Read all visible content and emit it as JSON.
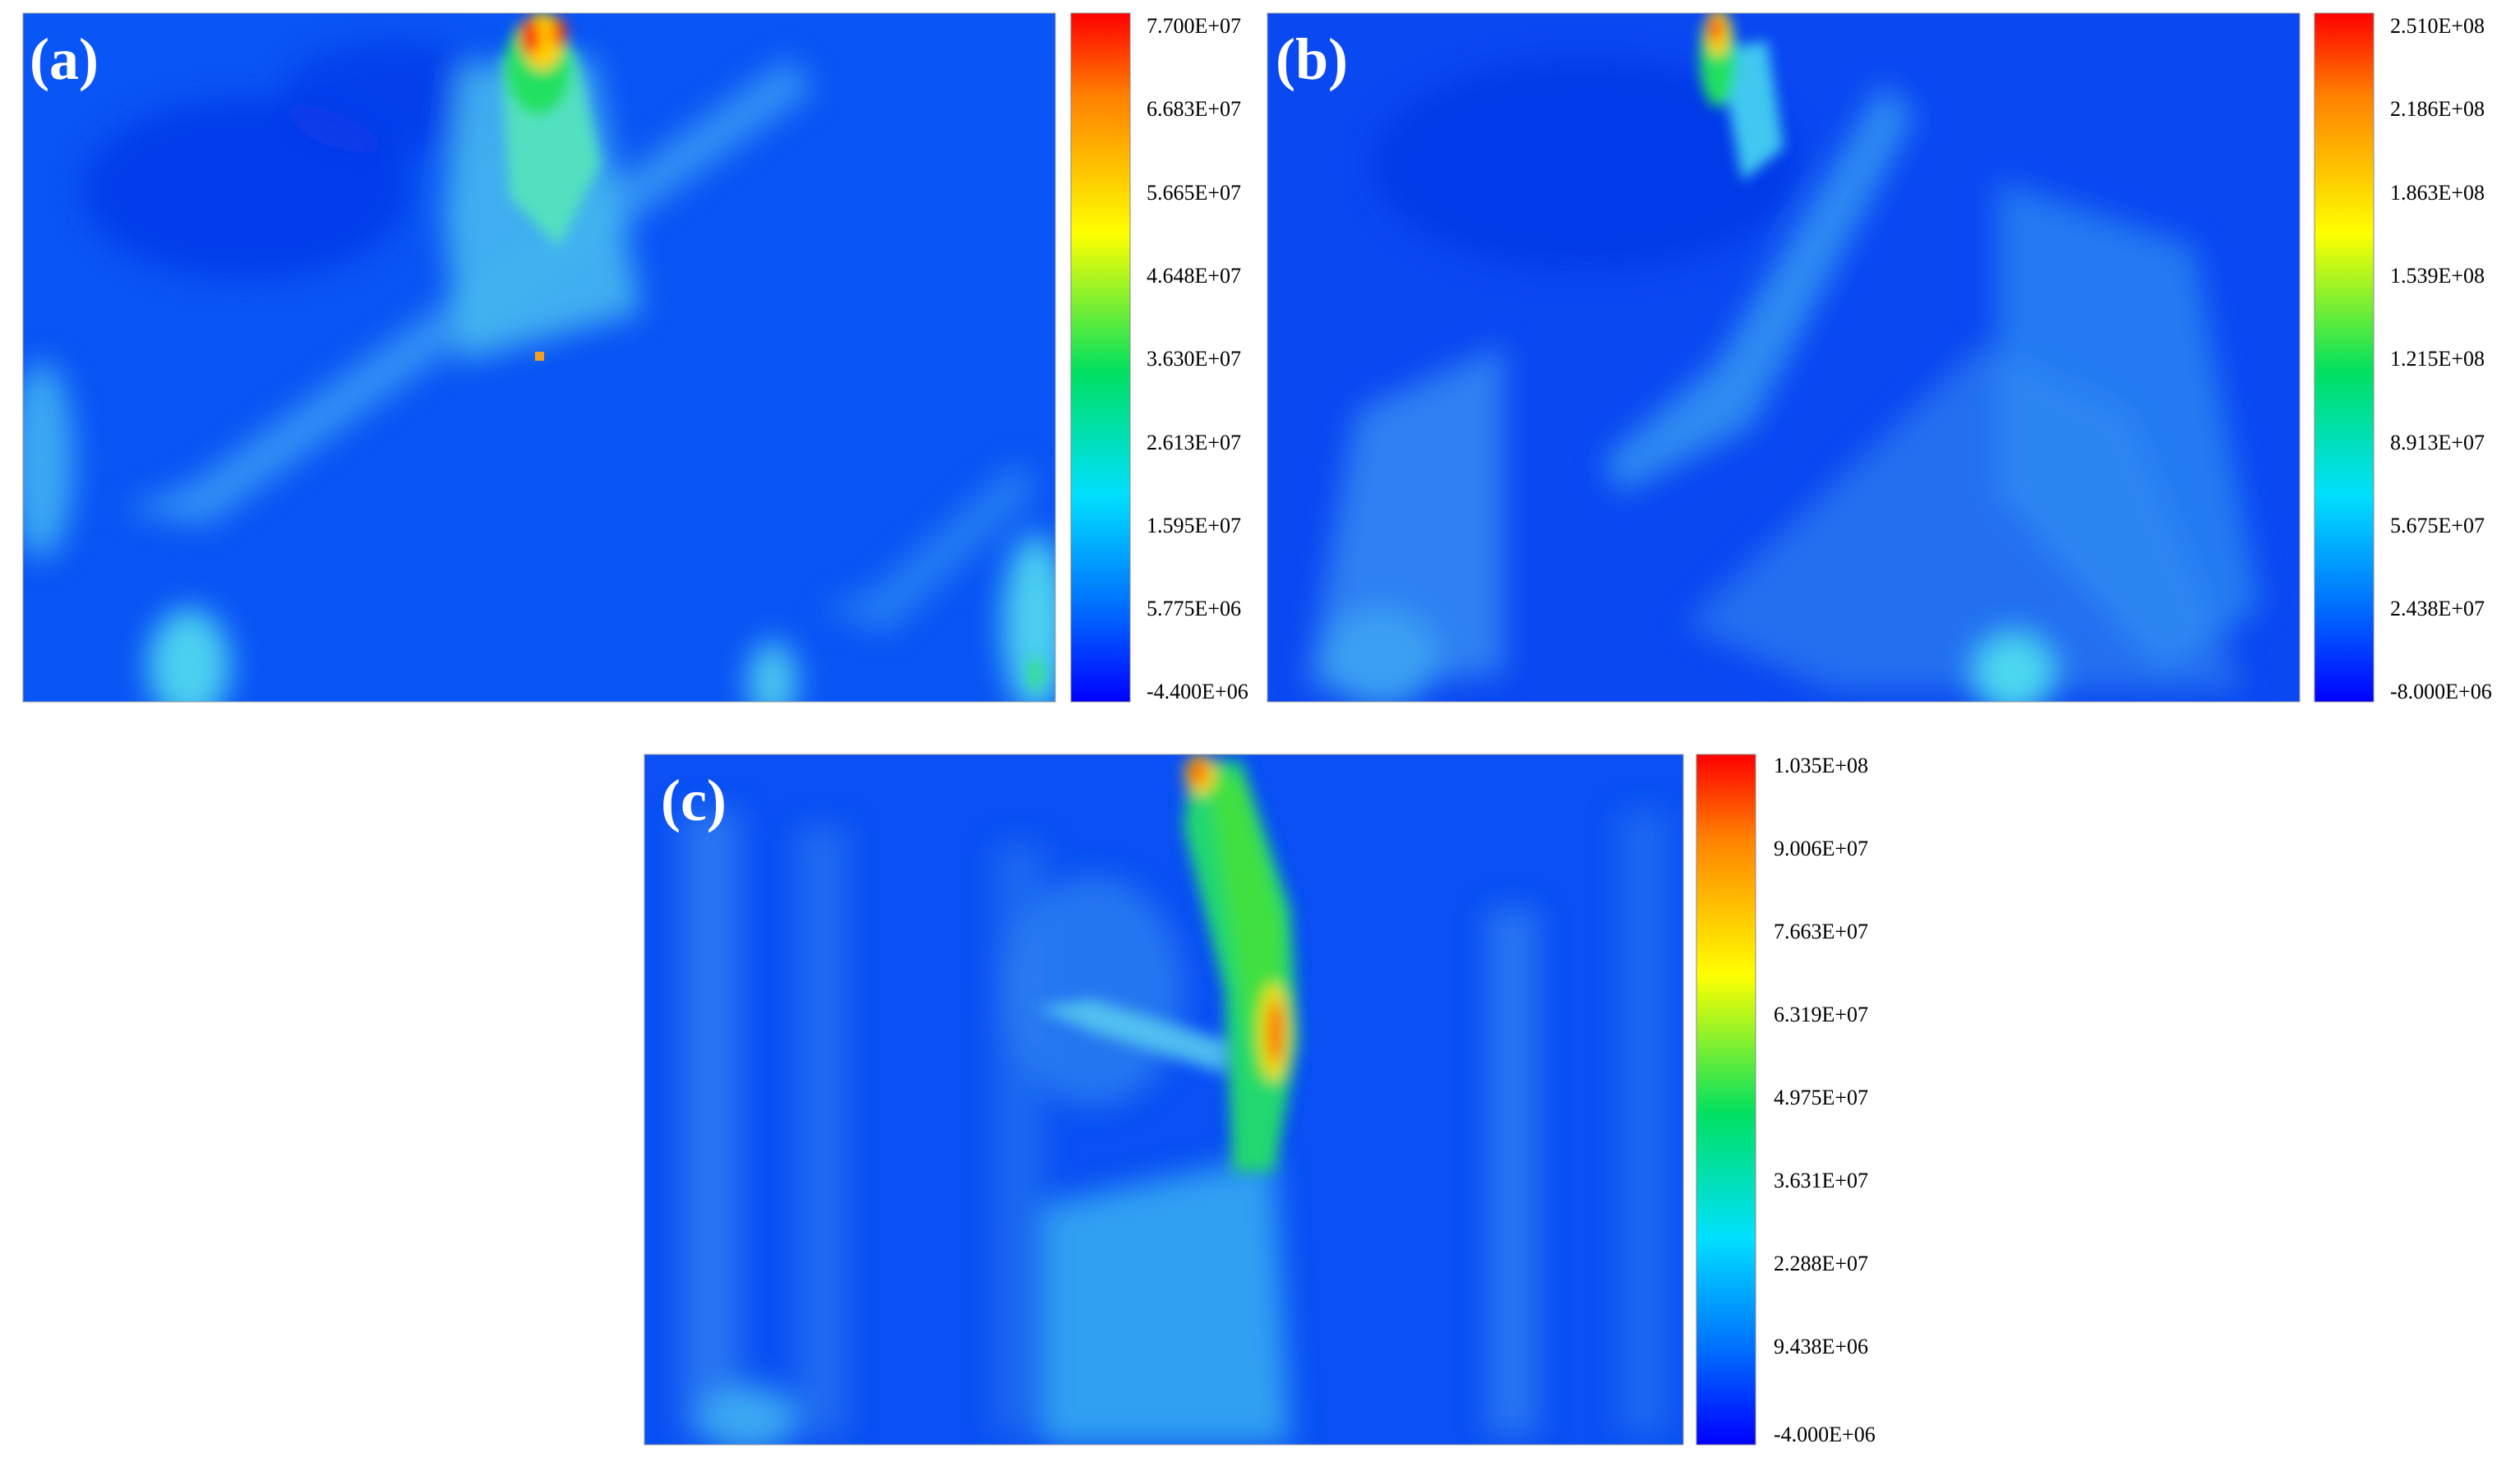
{
  "figure": {
    "panels": [
      {
        "label": "(a)",
        "colorbar_labels": [
          "7.700E+07",
          "6.683E+07",
          "5.665E+07",
          "4.648E+07",
          "3.630E+07",
          "2.613E+07",
          "1.595E+07",
          "5.775E+06",
          "-4.400E+06"
        ]
      },
      {
        "label": "(b)",
        "colorbar_labels": [
          "2.510E+08",
          "2.186E+08",
          "1.863E+08",
          "1.539E+08",
          "1.215E+08",
          "8.913E+07",
          "5.675E+07",
          "2.438E+07",
          "-8.000E+06"
        ]
      },
      {
        "label": "(c)",
        "colorbar_labels": [
          "1.035E+08",
          "9.006E+07",
          "7.663E+07",
          "6.319E+07",
          "4.975E+07",
          "3.631E+07",
          "2.288E+07",
          "9.438E+06",
          "-4.000E+06"
        ]
      }
    ]
  },
  "chart_data": [
    {
      "type": "heatmap",
      "title": "",
      "colormap": [
        "#0000ff",
        "#0070ff",
        "#00e0ff",
        "#00e060",
        "#ffff00",
        "#ff8000",
        "#ff0000"
      ],
      "colorbar_range": [
        -4400000.0,
        77000000.0
      ],
      "colorbar_ticks": [
        77000000.0,
        66830000.0,
        56650000.0,
        46480000.0,
        36300000.0,
        26130000.0,
        15950000.0,
        5775000.0,
        -4400000.0
      ]
    },
    {
      "type": "heatmap",
      "title": "",
      "colormap": [
        "#0000ff",
        "#0070ff",
        "#00e0ff",
        "#00e060",
        "#ffff00",
        "#ff8000",
        "#ff0000"
      ],
      "colorbar_range": [
        -8000000.0,
        251000000.0
      ],
      "colorbar_ticks": [
        251000000.0,
        218600000.0,
        186300000.0,
        153900000.0,
        121500000.0,
        89130000.0,
        56750000.0,
        24380000.0,
        -8000000.0
      ]
    },
    {
      "type": "heatmap",
      "title": "",
      "colormap": [
        "#0000ff",
        "#0070ff",
        "#00e0ff",
        "#00e060",
        "#ffff00",
        "#ff8000",
        "#ff0000"
      ],
      "colorbar_range": [
        -4000000.0,
        103500000.0
      ],
      "colorbar_ticks": [
        103500000.0,
        90060000.0,
        76630000.0,
        63190000.0,
        49750000.0,
        36310000.0,
        22880000.0,
        9438000.0,
        -4000000.0
      ]
    }
  ]
}
